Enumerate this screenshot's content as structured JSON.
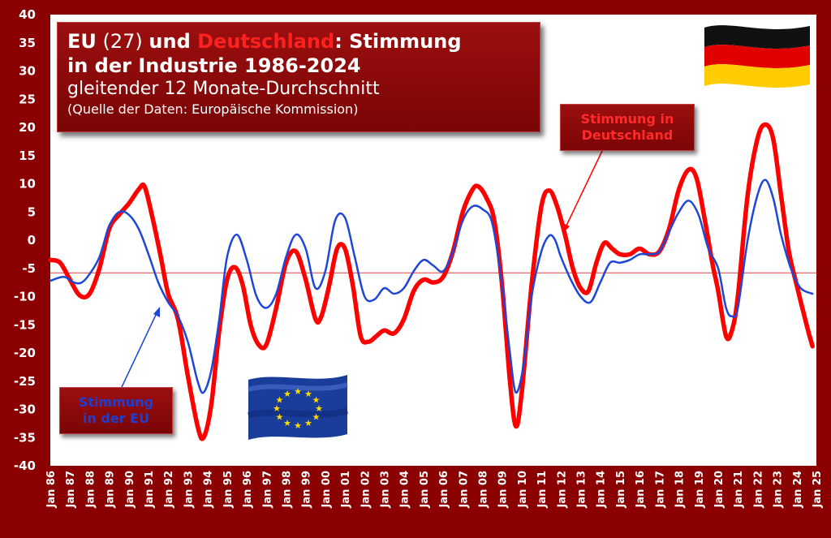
{
  "title": {
    "part_eu": "EU",
    "part_27": " (27) ",
    "part_und": "und ",
    "part_de": "Deutschland",
    "part_rest": ": Stimmung",
    "line2": "in der Industrie 1986-2024",
    "subtitle": "gleitender 12 Monate-Durchschnitt",
    "source": "(Quelle der Daten: Europäische Kommission)"
  },
  "callouts": {
    "de_line1": "Stimmung in",
    "de_line2": "Deutschland",
    "eu_line1": "Stimmung",
    "eu_line2": "in der EU"
  },
  "colors": {
    "background": "#8b0000",
    "plot": "#ffffff",
    "eu_line": "#1f47d6",
    "de_line": "#ff0000",
    "reference_line": "#e04040"
  },
  "chart_data": {
    "type": "line",
    "ylim": [
      -40,
      40
    ],
    "y_ticks": [
      40,
      35,
      30,
      25,
      20,
      15,
      10,
      5,
      0,
      -5,
      -10,
      -15,
      -20,
      -25,
      -30,
      -35,
      -40
    ],
    "x_tick_labels": [
      "Jan 86",
      "Jan 87",
      "Jan 88",
      "Jan 89",
      "Jan 90",
      "Jan 91",
      "Jan 92",
      "Jan 93",
      "Jan 94",
      "Jan 95",
      "Jan 96",
      "Jan 97",
      "Jan 98",
      "Jan 99",
      "Jan 00",
      "Jan 01",
      "Jan 02",
      "Jan 03",
      "Jan 04",
      "Jan 05",
      "Jan 06",
      "Jan 07",
      "Jan 08",
      "Jan 09",
      "Jan 10",
      "Jan 11",
      "Jan 12",
      "Jan 13",
      "Jan 14",
      "Jan 15",
      "Jan 16",
      "Jan 17",
      "Jan 18",
      "Jan 19",
      "Jan 20",
      "Jan 21",
      "Jan 22",
      "Jan 23",
      "Jan 24",
      "Jan 25"
    ],
    "x_range_years": [
      1986,
      2025
    ],
    "reference_line_y": -5.8,
    "grid": false,
    "series": [
      {
        "name": "Stimmung in der EU",
        "color": "#1f47d6",
        "points": [
          [
            1986.0,
            -7.2
          ],
          [
            1986.7,
            -6.5
          ],
          [
            1987.2,
            -7.5
          ],
          [
            1987.6,
            -7.5
          ],
          [
            1988.0,
            -6.0
          ],
          [
            1988.5,
            -3.0
          ],
          [
            1989.0,
            2.5
          ],
          [
            1989.5,
            5.0
          ],
          [
            1990.0,
            4.5
          ],
          [
            1990.5,
            2.0
          ],
          [
            1991.0,
            -2.5
          ],
          [
            1991.5,
            -7.5
          ],
          [
            1992.0,
            -11.0
          ],
          [
            1992.5,
            -13.5
          ],
          [
            1993.0,
            -18.0
          ],
          [
            1993.5,
            -25.0
          ],
          [
            1993.8,
            -27.0
          ],
          [
            1994.2,
            -23.0
          ],
          [
            1994.6,
            -14.0
          ],
          [
            1995.0,
            -3.0
          ],
          [
            1995.5,
            1.0
          ],
          [
            1996.0,
            -3.5
          ],
          [
            1996.5,
            -10.0
          ],
          [
            1997.0,
            -12.0
          ],
          [
            1997.5,
            -9.5
          ],
          [
            1998.0,
            -3.0
          ],
          [
            1998.5,
            1.0
          ],
          [
            1999.0,
            -1.5
          ],
          [
            1999.5,
            -8.5
          ],
          [
            2000.0,
            -5.5
          ],
          [
            2000.5,
            3.5
          ],
          [
            2001.0,
            4.0
          ],
          [
            2001.5,
            -3.0
          ],
          [
            2002.0,
            -10.0
          ],
          [
            2002.5,
            -10.5
          ],
          [
            2003.0,
            -8.5
          ],
          [
            2003.5,
            -9.5
          ],
          [
            2004.0,
            -8.5
          ],
          [
            2004.5,
            -5.5
          ],
          [
            2005.0,
            -3.5
          ],
          [
            2005.5,
            -4.5
          ],
          [
            2006.0,
            -5.5
          ],
          [
            2006.5,
            -2.0
          ],
          [
            2007.0,
            3.5
          ],
          [
            2007.5,
            6.0
          ],
          [
            2008.0,
            5.5
          ],
          [
            2008.5,
            3.0
          ],
          [
            2009.0,
            -8.0
          ],
          [
            2009.4,
            -20.0
          ],
          [
            2009.7,
            -27.0
          ],
          [
            2010.1,
            -22.0
          ],
          [
            2010.5,
            -10.0
          ],
          [
            2011.0,
            -2.0
          ],
          [
            2011.4,
            0.8
          ],
          [
            2011.7,
            0.0
          ],
          [
            2012.0,
            -3.0
          ],
          [
            2012.5,
            -7.0
          ],
          [
            2013.0,
            -10.0
          ],
          [
            2013.5,
            -11.0
          ],
          [
            2014.0,
            -7.5
          ],
          [
            2014.5,
            -4.0
          ],
          [
            2015.0,
            -4.0
          ],
          [
            2015.5,
            -3.5
          ],
          [
            2016.0,
            -2.5
          ],
          [
            2016.5,
            -2.5
          ],
          [
            2017.0,
            -2.0
          ],
          [
            2017.5,
            1.5
          ],
          [
            2018.0,
            5.0
          ],
          [
            2018.5,
            7.0
          ],
          [
            2019.0,
            4.5
          ],
          [
            2019.5,
            -1.5
          ],
          [
            2020.0,
            -5.0
          ],
          [
            2020.4,
            -12.0
          ],
          [
            2020.7,
            -13.5
          ],
          [
            2021.0,
            -12.0
          ],
          [
            2021.5,
            0.0
          ],
          [
            2022.0,
            8.0
          ],
          [
            2022.4,
            10.7
          ],
          [
            2022.8,
            7.5
          ],
          [
            2023.2,
            1.0
          ],
          [
            2023.7,
            -5.0
          ],
          [
            2024.2,
            -8.5
          ],
          [
            2024.8,
            -9.5
          ]
        ]
      },
      {
        "name": "Stimmung in Deutschland",
        "color": "#ff0000",
        "points": [
          [
            1986.0,
            -3.5
          ],
          [
            1986.5,
            -4.0
          ],
          [
            1987.0,
            -7.0
          ],
          [
            1987.5,
            -9.8
          ],
          [
            1988.0,
            -9.5
          ],
          [
            1988.5,
            -5.0
          ],
          [
            1989.0,
            2.0
          ],
          [
            1989.5,
            4.5
          ],
          [
            1990.0,
            6.5
          ],
          [
            1990.5,
            9.0
          ],
          [
            1990.8,
            9.5
          ],
          [
            1991.2,
            4.0
          ],
          [
            1991.6,
            -2.5
          ],
          [
            1992.0,
            -9.5
          ],
          [
            1992.5,
            -14.0
          ],
          [
            1993.0,
            -24.0
          ],
          [
            1993.5,
            -33.0
          ],
          [
            1993.8,
            -35.0
          ],
          [
            1994.2,
            -29.0
          ],
          [
            1994.6,
            -16.0
          ],
          [
            1995.0,
            -7.0
          ],
          [
            1995.4,
            -4.8
          ],
          [
            1995.8,
            -8.0
          ],
          [
            1996.2,
            -15.0
          ],
          [
            1996.6,
            -18.5
          ],
          [
            1997.0,
            -18.5
          ],
          [
            1997.5,
            -12.0
          ],
          [
            1998.0,
            -4.0
          ],
          [
            1998.5,
            -2.0
          ],
          [
            1999.0,
            -7.0
          ],
          [
            1999.5,
            -14.0
          ],
          [
            1999.8,
            -13.5
          ],
          [
            2000.2,
            -8.0
          ],
          [
            2000.6,
            -1.5
          ],
          [
            2001.0,
            -1.5
          ],
          [
            2001.4,
            -8.0
          ],
          [
            2001.8,
            -17.0
          ],
          [
            2002.2,
            -18.0
          ],
          [
            2002.6,
            -17.0
          ],
          [
            2003.0,
            -16.0
          ],
          [
            2003.5,
            -16.5
          ],
          [
            2004.0,
            -14.0
          ],
          [
            2004.5,
            -9.0
          ],
          [
            2005.0,
            -7.0
          ],
          [
            2005.5,
            -7.5
          ],
          [
            2006.0,
            -6.5
          ],
          [
            2006.5,
            -2.0
          ],
          [
            2007.0,
            5.0
          ],
          [
            2007.5,
            9.0
          ],
          [
            2007.8,
            9.5
          ],
          [
            2008.2,
            7.5
          ],
          [
            2008.6,
            3.5
          ],
          [
            2009.0,
            -8.0
          ],
          [
            2009.4,
            -25.0
          ],
          [
            2009.7,
            -33.0
          ],
          [
            2010.0,
            -27.0
          ],
          [
            2010.5,
            -8.0
          ],
          [
            2011.0,
            6.0
          ],
          [
            2011.4,
            8.8
          ],
          [
            2011.8,
            6.0
          ],
          [
            2012.2,
            1.0
          ],
          [
            2012.6,
            -5.0
          ],
          [
            2013.0,
            -8.5
          ],
          [
            2013.4,
            -9.0
          ],
          [
            2013.8,
            -4.0
          ],
          [
            2014.2,
            -0.5
          ],
          [
            2014.6,
            -1.5
          ],
          [
            2015.0,
            -2.5
          ],
          [
            2015.5,
            -2.5
          ],
          [
            2016.0,
            -1.5
          ],
          [
            2016.5,
            -2.5
          ],
          [
            2017.0,
            -2.0
          ],
          [
            2017.5,
            2.0
          ],
          [
            2018.0,
            9.0
          ],
          [
            2018.5,
            12.5
          ],
          [
            2018.9,
            11.0
          ],
          [
            2019.3,
            4.0
          ],
          [
            2019.7,
            -4.0
          ],
          [
            2020.0,
            -9.0
          ],
          [
            2020.4,
            -17.0
          ],
          [
            2020.7,
            -16.0
          ],
          [
            2021.0,
            -10.0
          ],
          [
            2021.5,
            8.0
          ],
          [
            2022.0,
            18.0
          ],
          [
            2022.4,
            20.5
          ],
          [
            2022.8,
            18.0
          ],
          [
            2023.2,
            8.0
          ],
          [
            2023.6,
            -2.0
          ],
          [
            2024.0,
            -8.0
          ],
          [
            2024.5,
            -15.0
          ],
          [
            2024.8,
            -18.8
          ]
        ]
      }
    ]
  }
}
